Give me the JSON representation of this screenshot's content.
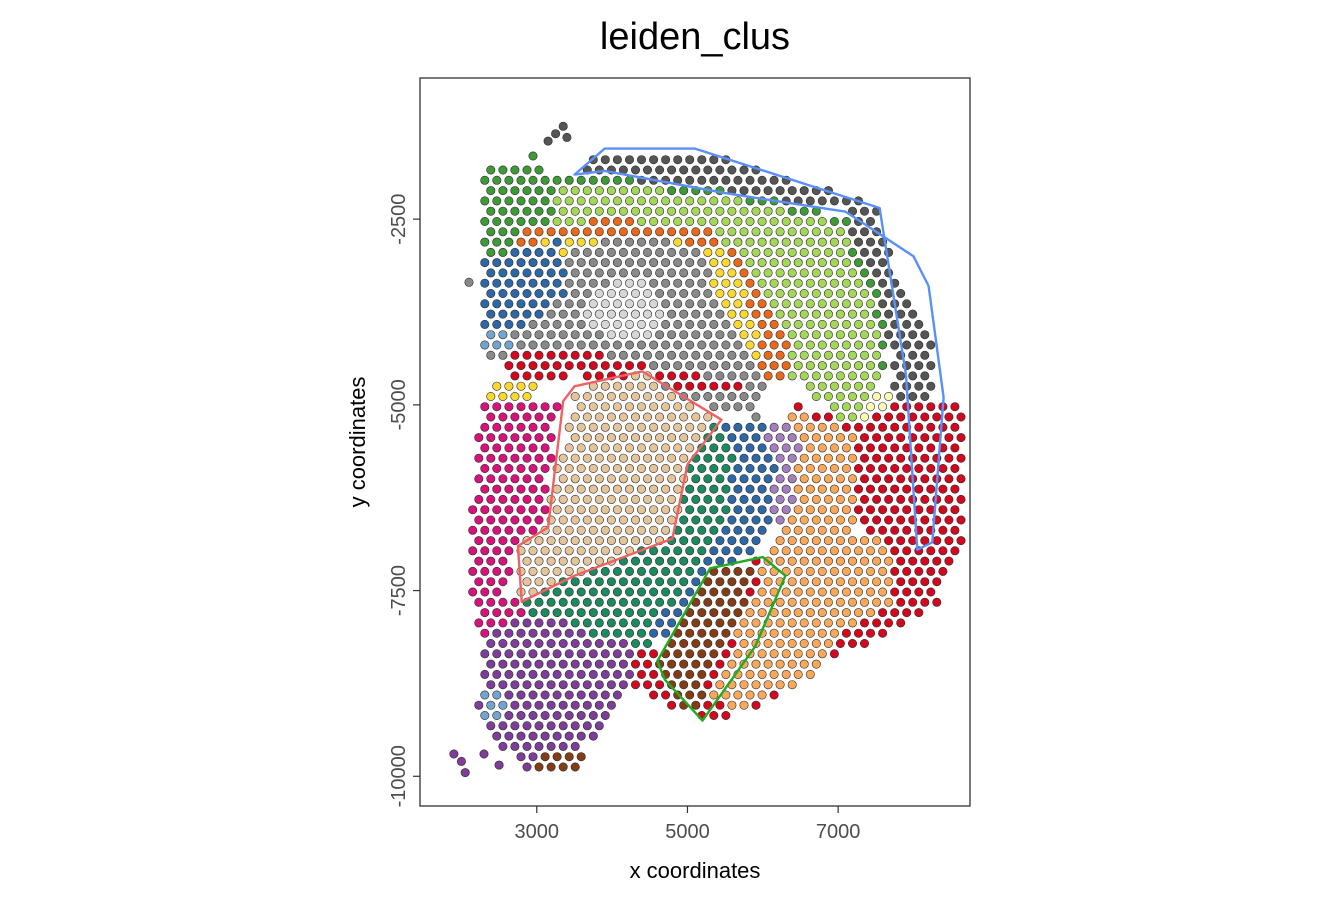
{
  "chart_data": {
    "type": "scatter",
    "title": "leiden_clus",
    "xlabel": "x coordinates",
    "ylabel": "y coordinates",
    "xlim": [
      1450,
      8750
    ],
    "ylim": [
      -10400,
      -600
    ],
    "x_ticks": [
      3000,
      5000,
      7000
    ],
    "x_tick_labels": [
      "3000",
      "5000",
      "7000"
    ],
    "y_ticks": [
      -2500,
      -5000,
      -7500,
      -10000
    ],
    "y_tick_labels": [
      "-2500",
      "-5000",
      "-7500",
      "-10000"
    ],
    "grid": false,
    "legend": "none",
    "spot_spacing": 160,
    "cluster_colors": {
      "c1_green": "#3d9a36",
      "c2_lightgreen": "#a4d65a",
      "c3_darkgray": "#555555",
      "c4_gray": "#898989",
      "c5_lightgray": "#d6d6d6",
      "c6_red": "#d2081f",
      "c7_magenta": "#d6137a",
      "c8_tan": "#e4c49a",
      "c9_teal": "#1b8a5e",
      "c10_blue": "#2d67a6",
      "c11_purple": "#7d3d98",
      "c12_orange": "#f7a85a",
      "c13_brown": "#843c16",
      "c14_yellow": "#f8d831",
      "c15_lightyellow": "#fbfbb3",
      "c16_darkorange": "#e8681c",
      "c17_lightblue": "#72a4ce",
      "c18_lavender": "#a57fbd"
    },
    "regions": [
      {
        "cluster": "c3_darkgray",
        "polygon": [
          [
            3500,
            -1900
          ],
          [
            3900,
            -1550
          ],
          [
            5100,
            -1550
          ],
          [
            7500,
            -2300
          ],
          [
            7800,
            -3400
          ],
          [
            8300,
            -4100
          ],
          [
            8100,
            -6800
          ],
          [
            7700,
            -6900
          ],
          [
            7750,
            -4500
          ],
          [
            7100,
            -2400
          ],
          [
            5500,
            -2200
          ],
          [
            4000,
            -1900
          ]
        ]
      },
      {
        "cluster": "c1_green",
        "polygon": [
          [
            2300,
            -1750
          ],
          [
            3600,
            -1900
          ],
          [
            5500,
            -2100
          ],
          [
            7100,
            -2450
          ],
          [
            7600,
            -3700
          ],
          [
            7600,
            -4700
          ],
          [
            6300,
            -4600
          ],
          [
            5800,
            -3500
          ],
          [
            4500,
            -2900
          ],
          [
            3300,
            -2900
          ],
          [
            2300,
            -3100
          ]
        ]
      },
      {
        "cluster": "c2_lightgreen",
        "polygon": [
          [
            3300,
            -2000
          ],
          [
            5600,
            -2200
          ],
          [
            7000,
            -2550
          ],
          [
            7500,
            -3700
          ],
          [
            7600,
            -4600
          ],
          [
            7300,
            -5400
          ],
          [
            6800,
            -5000
          ],
          [
            6200,
            -4500
          ],
          [
            5800,
            -3400
          ],
          [
            4500,
            -2900
          ],
          [
            3700,
            -2750
          ],
          [
            3200,
            -2500
          ]
        ]
      },
      {
        "cluster": "c15_lightyellow",
        "polygon": [
          [
            7400,
            -4800
          ],
          [
            7800,
            -4800
          ],
          [
            7850,
            -6800
          ],
          [
            7100,
            -6600
          ],
          [
            7100,
            -5600
          ]
        ]
      },
      {
        "cluster": "c16_darkorange",
        "polygon": [
          [
            2700,
            -2700
          ],
          [
            3800,
            -2500
          ],
          [
            5300,
            -2600
          ],
          [
            5800,
            -3100
          ],
          [
            6100,
            -3700
          ],
          [
            6400,
            -4300
          ],
          [
            6200,
            -4700
          ],
          [
            5900,
            -4500
          ],
          [
            5600,
            -3500
          ],
          [
            4600,
            -2900
          ],
          [
            3500,
            -2900
          ],
          [
            2700,
            -3000
          ]
        ]
      },
      {
        "cluster": "c14_yellow",
        "polygon": [
          [
            3100,
            -2800
          ],
          [
            4400,
            -2700
          ],
          [
            5500,
            -2900
          ],
          [
            5800,
            -3600
          ],
          [
            6000,
            -4300
          ],
          [
            5700,
            -4500
          ],
          [
            5300,
            -4100
          ],
          [
            5200,
            -3500
          ],
          [
            4500,
            -3100
          ],
          [
            3600,
            -3100
          ],
          [
            3100,
            -3500
          ]
        ]
      },
      {
        "cluster": "c4_gray",
        "polygon": [
          [
            3200,
            -3000
          ],
          [
            4200,
            -2700
          ],
          [
            5200,
            -2900
          ],
          [
            5400,
            -3600
          ],
          [
            5800,
            -4300
          ],
          [
            6100,
            -4800
          ],
          [
            5900,
            -5200
          ],
          [
            5100,
            -5000
          ],
          [
            4400,
            -4600
          ],
          [
            3400,
            -4400
          ],
          [
            2300,
            -4400
          ],
          [
            2300,
            -3900
          ],
          [
            3000,
            -3700
          ]
        ]
      },
      {
        "cluster": "c5_lightgray",
        "polygon": [
          [
            3700,
            -3400
          ],
          [
            4500,
            -3300
          ],
          [
            4700,
            -3800
          ],
          [
            4500,
            -4100
          ],
          [
            3900,
            -4100
          ],
          [
            3600,
            -3800
          ]
        ]
      },
      {
        "cluster": "c10_blue",
        "polygon": [
          [
            2300,
            -3000
          ],
          [
            3300,
            -2800
          ],
          [
            3400,
            -3500
          ],
          [
            2800,
            -4000
          ],
          [
            2300,
            -4000
          ]
        ]
      },
      {
        "cluster": "c17_lightblue",
        "polygon": [
          [
            2300,
            -4000
          ],
          [
            2700,
            -4000
          ],
          [
            2700,
            -4300
          ],
          [
            2300,
            -4300
          ]
        ]
      },
      {
        "cluster": "c14_yellow",
        "polygon": [
          [
            2350,
            -4650
          ],
          [
            3000,
            -4650
          ],
          [
            3000,
            -4950
          ],
          [
            2350,
            -4950
          ]
        ]
      },
      {
        "cluster": "c6_red",
        "polygon": [
          [
            2600,
            -4300
          ],
          [
            3500,
            -4200
          ],
          [
            4600,
            -4500
          ],
          [
            5600,
            -4700
          ],
          [
            6200,
            -4900
          ],
          [
            7300,
            -5300
          ],
          [
            7900,
            -4900
          ],
          [
            8700,
            -5000
          ],
          [
            8700,
            -6700
          ],
          [
            8300,
            -7700
          ],
          [
            7500,
            -8200
          ],
          [
            6800,
            -8400
          ],
          [
            6200,
            -9000
          ],
          [
            5300,
            -9300
          ],
          [
            4300,
            -8800
          ],
          [
            3800,
            -8400
          ],
          [
            4700,
            -8200
          ],
          [
            5600,
            -7800
          ],
          [
            5900,
            -7000
          ],
          [
            7300,
            -6800
          ],
          [
            7200,
            -5600
          ],
          [
            6300,
            -4900
          ],
          [
            5200,
            -4800
          ],
          [
            3500,
            -4600
          ],
          [
            2600,
            -4700
          ]
        ]
      },
      {
        "cluster": "c8_tan",
        "polygon": [
          [
            3500,
            -4800
          ],
          [
            4400,
            -4550
          ],
          [
            5400,
            -5200
          ],
          [
            5000,
            -5800
          ],
          [
            4800,
            -6800
          ],
          [
            3500,
            -7300
          ],
          [
            2800,
            -7600
          ],
          [
            2700,
            -6900
          ],
          [
            3100,
            -6600
          ]
        ]
      },
      {
        "cluster": "c7_magenta",
        "polygon": [
          [
            2300,
            -5000
          ],
          [
            3300,
            -4900
          ],
          [
            3100,
            -6600
          ],
          [
            2700,
            -6900
          ],
          [
            2600,
            -7600
          ],
          [
            3000,
            -7800
          ],
          [
            2800,
            -8200
          ],
          [
            2200,
            -8200
          ],
          [
            2100,
            -7000
          ],
          [
            2200,
            -5600
          ]
        ]
      },
      {
        "cluster": "c9_teal",
        "polygon": [
          [
            2800,
            -7600
          ],
          [
            3500,
            -7300
          ],
          [
            4800,
            -6800
          ],
          [
            5000,
            -5800
          ],
          [
            5400,
            -5200
          ],
          [
            5700,
            -5600
          ],
          [
            5600,
            -6500
          ],
          [
            5200,
            -7500
          ],
          [
            4700,
            -8200
          ],
          [
            3700,
            -8300
          ],
          [
            3000,
            -7900
          ]
        ]
      },
      {
        "cluster": "c10_blue",
        "polygon": [
          [
            5400,
            -5200
          ],
          [
            6000,
            -5200
          ],
          [
            6400,
            -5700
          ],
          [
            6200,
            -6500
          ],
          [
            5900,
            -7000
          ],
          [
            5400,
            -7200
          ],
          [
            5000,
            -7800
          ],
          [
            4700,
            -8300
          ],
          [
            4500,
            -8000
          ],
          [
            5100,
            -7300
          ],
          [
            5500,
            -6500
          ],
          [
            5600,
            -5700
          ]
        ]
      },
      {
        "cluster": "c18_lavender",
        "polygon": [
          [
            6000,
            -5300
          ],
          [
            6500,
            -5300
          ],
          [
            6600,
            -6000
          ],
          [
            6300,
            -6600
          ],
          [
            6000,
            -6500
          ],
          [
            6200,
            -5900
          ]
        ]
      },
      {
        "cluster": "c12_orange",
        "polygon": [
          [
            6300,
            -5000
          ],
          [
            7200,
            -5400
          ],
          [
            7200,
            -6700
          ],
          [
            7700,
            -6900
          ],
          [
            7700,
            -7700
          ],
          [
            7000,
            -8100
          ],
          [
            6700,
            -8700
          ],
          [
            5600,
            -9100
          ],
          [
            5300,
            -8900
          ],
          [
            5700,
            -8000
          ],
          [
            6100,
            -6900
          ],
          [
            6400,
            -6300
          ],
          [
            6500,
            -5500
          ]
        ]
      },
      {
        "cluster": "c13_brown",
        "polygon": [
          [
            4600,
            -8300
          ],
          [
            5300,
            -7200
          ],
          [
            5900,
            -7100
          ],
          [
            5800,
            -7600
          ],
          [
            5400,
            -8400
          ],
          [
            5100,
            -9200
          ],
          [
            4600,
            -8700
          ]
        ]
      },
      {
        "cluster": "c11_purple",
        "polygon": [
          [
            2300,
            -8100
          ],
          [
            3000,
            -7800
          ],
          [
            3800,
            -8100
          ],
          [
            4300,
            -8100
          ],
          [
            4300,
            -8700
          ],
          [
            4000,
            -9300
          ],
          [
            3400,
            -9700
          ],
          [
            2800,
            -9900
          ],
          [
            2500,
            -9600
          ],
          [
            2200,
            -9200
          ]
        ]
      },
      {
        "cluster": "c13_brown",
        "polygon": [
          [
            3000,
            -9600
          ],
          [
            3600,
            -9600
          ],
          [
            3600,
            -9950
          ],
          [
            3000,
            -9950
          ]
        ]
      },
      {
        "cluster": "c17_lightblue",
        "polygon": [
          [
            2250,
            -8800
          ],
          [
            2600,
            -8800
          ],
          [
            2600,
            -9200
          ],
          [
            2250,
            -9200
          ]
        ]
      }
    ],
    "outlier_points": [
      {
        "x": 3250,
        "y": -1350,
        "cluster": "c3_darkgray"
      },
      {
        "x": 3350,
        "y": -1250,
        "cluster": "c3_darkgray"
      },
      {
        "x": 3400,
        "y": -1400,
        "cluster": "c3_darkgray"
      },
      {
        "x": 3150,
        "y": -1450,
        "cluster": "c3_darkgray"
      },
      {
        "x": 2950,
        "y": -1650,
        "cluster": "c1_green"
      },
      {
        "x": 2100,
        "y": -3350,
        "cluster": "c4_gray"
      },
      {
        "x": 1900,
        "y": -9700,
        "cluster": "c11_purple"
      },
      {
        "x": 2000,
        "y": -9800,
        "cluster": "c11_purple"
      },
      {
        "x": 2050,
        "y": -9950,
        "cluster": "c11_purple"
      },
      {
        "x": 2300,
        "y": -9700,
        "cluster": "c11_purple"
      },
      {
        "x": 2500,
        "y": -9850,
        "cluster": "c11_purple"
      }
    ],
    "selection_polygons": [
      {
        "color": "#5b8ff9",
        "points": [
          [
            3500,
            -1900
          ],
          [
            3900,
            -1550
          ],
          [
            5100,
            -1550
          ],
          [
            7550,
            -2350
          ],
          [
            7900,
            -4600
          ],
          [
            8050,
            -6950
          ],
          [
            8250,
            -6850
          ],
          [
            8400,
            -4900
          ],
          [
            8200,
            -3400
          ],
          [
            8000,
            -3000
          ],
          [
            7100,
            -2400
          ],
          [
            5500,
            -2150
          ],
          [
            3900,
            -1850
          ]
        ]
      },
      {
        "color": "#f06262",
        "points": [
          [
            3500,
            -4750
          ],
          [
            4400,
            -4550
          ],
          [
            5450,
            -5200
          ],
          [
            5000,
            -5800
          ],
          [
            4800,
            -6800
          ],
          [
            3500,
            -7300
          ],
          [
            2800,
            -7650
          ],
          [
            2750,
            -6900
          ],
          [
            3150,
            -6650
          ],
          [
            3350,
            -4950
          ]
        ]
      },
      {
        "color": "#22aa22",
        "points": [
          [
            4600,
            -8450
          ],
          [
            5300,
            -7200
          ],
          [
            6000,
            -7050
          ],
          [
            6300,
            -7300
          ],
          [
            5900,
            -8250
          ],
          [
            5200,
            -9250
          ],
          [
            4700,
            -8700
          ]
        ]
      }
    ]
  }
}
